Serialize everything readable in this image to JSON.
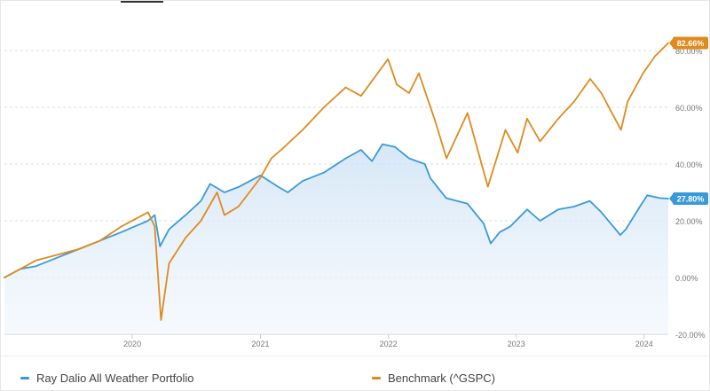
{
  "chart_data": {
    "type": "line",
    "title": "",
    "xlabel": "",
    "ylabel": "",
    "x_ticks": [
      "2020",
      "2021",
      "2022",
      "2023",
      "2024"
    ],
    "y_ticks": [
      "-20.00%",
      "0.00%",
      "20.00%",
      "40.00%",
      "60.00%",
      "80.00%"
    ],
    "ylim": [
      -20,
      85
    ],
    "xlim": [
      "2019-01-01",
      "2024-03-10"
    ],
    "grid": "horizontal dashed",
    "legend_placement": "bottom",
    "series": [
      {
        "name": "Ray Dalio All Weather Portfolio",
        "color": "#3a9ad9",
        "end_label": "27.80%",
        "fill": true,
        "points": [
          [
            "2019-01-01",
            0
          ],
          [
            "2019-02-15",
            3
          ],
          [
            "2019-04-01",
            4
          ],
          [
            "2019-06-01",
            7
          ],
          [
            "2019-08-01",
            10
          ],
          [
            "2019-10-01",
            13
          ],
          [
            "2019-12-01",
            16
          ],
          [
            "2020-02-15",
            20
          ],
          [
            "2020-03-05",
            22
          ],
          [
            "2020-03-20",
            11
          ],
          [
            "2020-04-15",
            17
          ],
          [
            "2020-06-01",
            22
          ],
          [
            "2020-07-15",
            27
          ],
          [
            "2020-08-10",
            33
          ],
          [
            "2020-09-20",
            30
          ],
          [
            "2020-11-01",
            32
          ],
          [
            "2021-01-01",
            36
          ],
          [
            "2021-02-20",
            32
          ],
          [
            "2021-03-20",
            30
          ],
          [
            "2021-05-01",
            34
          ],
          [
            "2021-07-01",
            37
          ],
          [
            "2021-09-01",
            42
          ],
          [
            "2021-10-15",
            45
          ],
          [
            "2021-11-15",
            41
          ],
          [
            "2021-12-15",
            47
          ],
          [
            "2022-01-20",
            46
          ],
          [
            "2022-03-01",
            42
          ],
          [
            "2022-04-15",
            40
          ],
          [
            "2022-05-01",
            35
          ],
          [
            "2022-06-15",
            28
          ],
          [
            "2022-08-15",
            26
          ],
          [
            "2022-09-30",
            19
          ],
          [
            "2022-10-20",
            12
          ],
          [
            "2022-11-15",
            16
          ],
          [
            "2022-12-15",
            18
          ],
          [
            "2023-02-01",
            24
          ],
          [
            "2023-03-10",
            20
          ],
          [
            "2023-05-01",
            24
          ],
          [
            "2023-06-15",
            25
          ],
          [
            "2023-07-30",
            27
          ],
          [
            "2023-09-01",
            23
          ],
          [
            "2023-10-25",
            15
          ],
          [
            "2023-11-10",
            17
          ],
          [
            "2023-12-20",
            25
          ],
          [
            "2024-01-10",
            29
          ],
          [
            "2024-02-15",
            28
          ],
          [
            "2024-03-10",
            27.8
          ]
        ]
      },
      {
        "name": "Benchmark (^GSPC)",
        "color": "#e08a1e",
        "end_label": "82.66%",
        "fill": false,
        "points": [
          [
            "2019-01-01",
            0
          ],
          [
            "2019-02-15",
            3
          ],
          [
            "2019-04-01",
            6
          ],
          [
            "2019-06-01",
            8
          ],
          [
            "2019-08-01",
            10
          ],
          [
            "2019-10-01",
            13
          ],
          [
            "2019-12-01",
            18
          ],
          [
            "2020-02-15",
            23
          ],
          [
            "2020-03-05",
            18
          ],
          [
            "2020-03-23",
            -15
          ],
          [
            "2020-04-15",
            5
          ],
          [
            "2020-06-01",
            14
          ],
          [
            "2020-07-15",
            20
          ],
          [
            "2020-08-30",
            30
          ],
          [
            "2020-09-20",
            22
          ],
          [
            "2020-10-30",
            25
          ],
          [
            "2020-12-31",
            35
          ],
          [
            "2021-02-01",
            42
          ],
          [
            "2021-03-01",
            45
          ],
          [
            "2021-05-01",
            52
          ],
          [
            "2021-07-01",
            60
          ],
          [
            "2021-09-01",
            67
          ],
          [
            "2021-10-15",
            64
          ],
          [
            "2021-12-31",
            77
          ],
          [
            "2022-01-25",
            68
          ],
          [
            "2022-03-01",
            65
          ],
          [
            "2022-03-29",
            72
          ],
          [
            "2022-05-15",
            55
          ],
          [
            "2022-06-16",
            42
          ],
          [
            "2022-08-15",
            58
          ],
          [
            "2022-10-12",
            32
          ],
          [
            "2022-12-01",
            52
          ],
          [
            "2023-01-05",
            44
          ],
          [
            "2023-02-01",
            56
          ],
          [
            "2023-03-10",
            48
          ],
          [
            "2023-05-01",
            56
          ],
          [
            "2023-06-15",
            62
          ],
          [
            "2023-07-31",
            70
          ],
          [
            "2023-09-01",
            65
          ],
          [
            "2023-10-27",
            52
          ],
          [
            "2023-11-15",
            62
          ],
          [
            "2023-12-29",
            72
          ],
          [
            "2024-02-01",
            78
          ],
          [
            "2024-03-10",
            82.66
          ]
        ]
      }
    ]
  }
}
